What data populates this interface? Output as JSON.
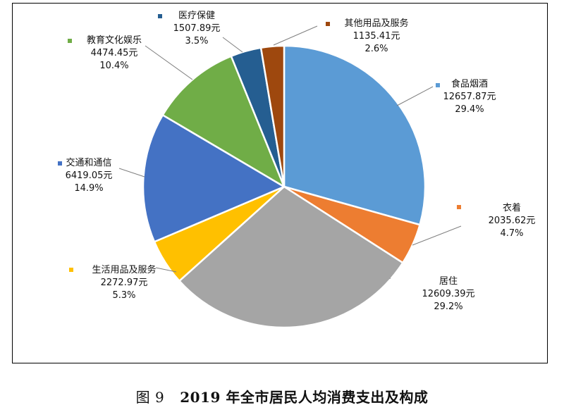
{
  "caption": {
    "figure_no": "图 9",
    "title": "2019 年全市居民人均消费支出及构成"
  },
  "chart_data": {
    "type": "pie",
    "start_angle_deg": 0,
    "direction": "clockwise",
    "slices": [
      {
        "name": "食品烟酒",
        "value": 12657.87,
        "value_label": "12657.87元",
        "percent_label": "29.4%",
        "color": "#5b9bd5"
      },
      {
        "name": "衣着",
        "value": 2035.62,
        "value_label": "2035.62元",
        "percent_label": "4.7%",
        "color": "#ed7d31"
      },
      {
        "name": "居住",
        "value": 12609.39,
        "value_label": "12609.39元",
        "percent_label": "29.2%",
        "color": "#a5a5a5"
      },
      {
        "name": "生活用品及服务",
        "value": 2272.97,
        "value_label": "2272.97元",
        "percent_label": "5.3%",
        "color": "#ffc000"
      },
      {
        "name": "交通和通信",
        "value": 6419.05,
        "value_label": "6419.05元",
        "percent_label": "14.9%",
        "color": "#4472c4"
      },
      {
        "name": "教育文化娱乐",
        "value": 4474.45,
        "value_label": "4474.45元",
        "percent_label": "10.4%",
        "color": "#70ad47"
      },
      {
        "name": "医疗保健",
        "value": 1507.89,
        "value_label": "1507.89元",
        "percent_label": "3.5%",
        "color": "#255e91"
      },
      {
        "name": "其他用品及服务",
        "value": 1135.41,
        "value_label": "1135.41元",
        "percent_label": "2.6%",
        "color": "#9e480e"
      }
    ]
  }
}
